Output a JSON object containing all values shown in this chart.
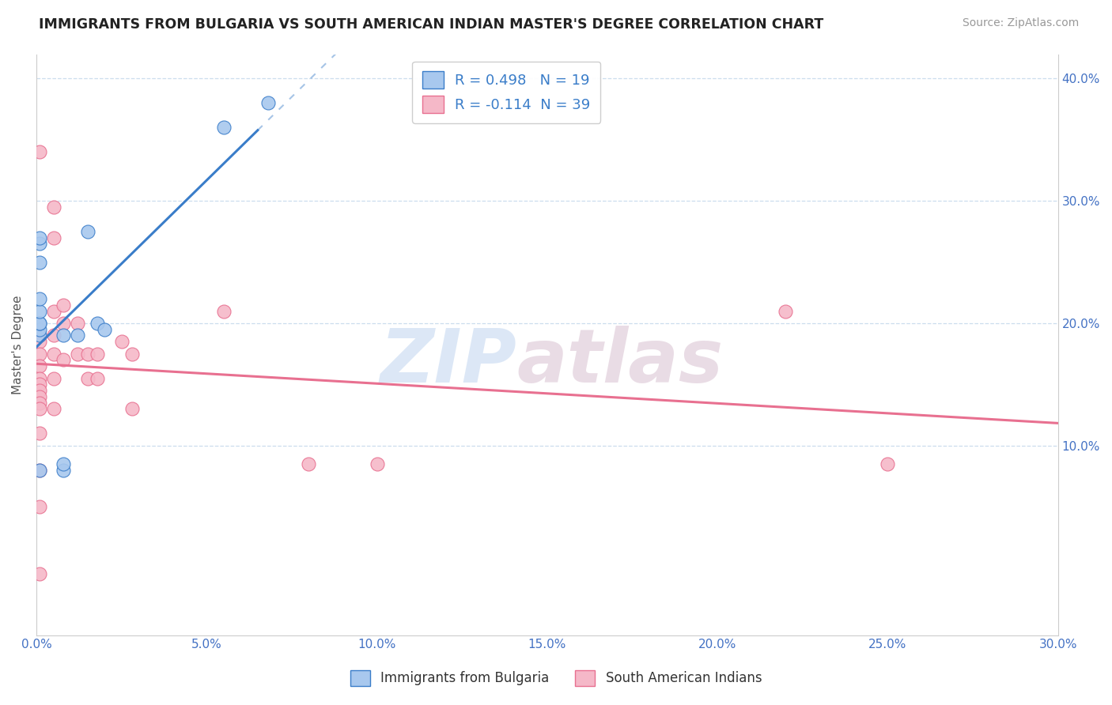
{
  "title": "IMMIGRANTS FROM BULGARIA VS SOUTH AMERICAN INDIAN MASTER'S DEGREE CORRELATION CHART",
  "source": "Source: ZipAtlas.com",
  "ylabel": "Master's Degree",
  "xlim": [
    0.0,
    0.3
  ],
  "ylim": [
    -0.055,
    0.42
  ],
  "plot_ylim": [
    -0.055,
    0.42
  ],
  "xticks": [
    0.0,
    0.05,
    0.1,
    0.15,
    0.2,
    0.25,
    0.3
  ],
  "xtick_labels": [
    "0.0%",
    "5.0%",
    "10.0%",
    "15.0%",
    "20.0%",
    "25.0%",
    "30.0%"
  ],
  "yticks": [
    0.1,
    0.2,
    0.3,
    0.4
  ],
  "ytick_labels_right": [
    "10.0%",
    "20.0%",
    "30.0%",
    "40.0%"
  ],
  "blue_R": 0.498,
  "blue_N": 19,
  "pink_R": -0.114,
  "pink_N": 39,
  "blue_color": "#A8C8EE",
  "pink_color": "#F5B8C8",
  "blue_line_color": "#3A7DC9",
  "pink_line_color": "#E87090",
  "legend_label_blue": "Immigrants from Bulgaria",
  "legend_label_pink": "South American Indians",
  "watermark_zip": "ZIP",
  "watermark_atlas": "atlas",
  "blue_x": [
    0.001,
    0.001,
    0.001,
    0.001,
    0.001,
    0.001,
    0.001,
    0.001,
    0.001,
    0.001,
    0.008,
    0.008,
    0.008,
    0.012,
    0.015,
    0.018,
    0.02,
    0.055,
    0.068
  ],
  "blue_y": [
    0.19,
    0.195,
    0.2,
    0.2,
    0.21,
    0.22,
    0.25,
    0.265,
    0.27,
    0.08,
    0.08,
    0.085,
    0.19,
    0.19,
    0.275,
    0.2,
    0.195,
    0.36,
    0.38
  ],
  "pink_x": [
    0.001,
    0.001,
    0.001,
    0.001,
    0.001,
    0.001,
    0.001,
    0.001,
    0.001,
    0.001,
    0.001,
    0.001,
    0.001,
    0.001,
    0.001,
    0.005,
    0.005,
    0.005,
    0.005,
    0.005,
    0.005,
    0.005,
    0.008,
    0.008,
    0.008,
    0.012,
    0.012,
    0.015,
    0.015,
    0.018,
    0.018,
    0.025,
    0.028,
    0.028,
    0.055,
    0.08,
    0.1,
    0.22,
    0.25
  ],
  "pink_y": [
    0.34,
    0.19,
    0.185,
    0.175,
    0.165,
    0.155,
    0.15,
    0.145,
    0.14,
    0.135,
    0.13,
    0.11,
    0.08,
    0.05,
    -0.005,
    0.295,
    0.27,
    0.21,
    0.19,
    0.175,
    0.155,
    0.13,
    0.215,
    0.2,
    0.17,
    0.2,
    0.175,
    0.175,
    0.155,
    0.175,
    0.155,
    0.185,
    0.175,
    0.13,
    0.21,
    0.085,
    0.085,
    0.21,
    0.085
  ],
  "blue_trend_x": [
    0.0,
    0.065
  ],
  "blue_trend_color": "#3A7DC9",
  "pink_trend_x": [
    0.0,
    0.3
  ],
  "grid_color": "#CCDDEE",
  "tick_color": "#4472C4",
  "ylabel_color": "#555555"
}
